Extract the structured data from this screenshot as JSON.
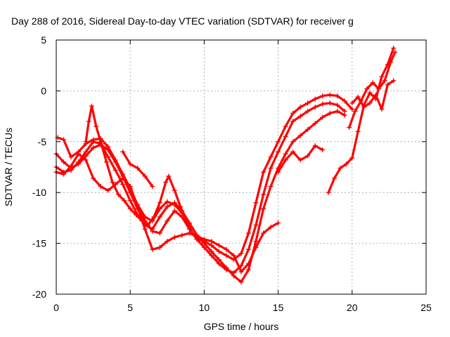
{
  "chart_data": {
    "type": "scatter",
    "title": "Day 288 of 2016, Sidereal Day-to-day VTEC variation (SDTVAR) for receiver g",
    "xlabel": "GPS time / hours",
    "ylabel": "SDTVAR / TECUs",
    "xlim": [
      0,
      25
    ],
    "ylim": [
      -20,
      5
    ],
    "xticks": [
      "0",
      "5",
      "10",
      "15",
      "20",
      "25"
    ],
    "yticks": [
      "5",
      "0",
      "-5",
      "-10",
      "-15",
      "-20"
    ],
    "grid": true,
    "color": "#ff0000",
    "marker": "+",
    "series": [
      {
        "x": [
          0.1,
          0.5,
          1.0,
          1.5,
          2.0,
          2.5,
          3.0,
          3.5,
          4.0,
          4.5,
          5.0,
          5.5,
          6.0,
          6.5,
          7.0,
          7.5,
          8.0,
          8.5,
          9.0,
          9.5,
          10.0,
          10.5,
          11.0,
          11.5,
          12.0,
          12.5,
          13.0,
          13.5,
          14.0,
          14.5,
          15.0,
          15.5,
          16.0,
          16.5,
          17.0,
          17.5,
          18.0,
          18.5,
          19.0,
          19.5,
          20.0
        ],
        "y": [
          -4.6,
          -4.8,
          -6.5,
          -6.0,
          -5.2,
          -4.8,
          -4.7,
          -5.5,
          -6.8,
          -8.2,
          -9.6,
          -11.2,
          -12.4,
          -12.8,
          -11.6,
          -10.9,
          -11.2,
          -12.0,
          -13.0,
          -14.2,
          -14.8,
          -15.2,
          -15.8,
          -16.2,
          -16.6,
          -16.0,
          -14.0,
          -11.0,
          -8.0,
          -6.5,
          -5.0,
          -3.5,
          -2.2,
          -1.6,
          -1.2,
          -0.8,
          -0.5,
          -0.4,
          -0.5,
          -1.0,
          -1.8
        ]
      },
      {
        "x": [
          0.0,
          0.5,
          1.0,
          1.5,
          2.0,
          2.5,
          3.0,
          3.5,
          4.0,
          4.5,
          5.0,
          5.5,
          6.0,
          6.5,
          7.0,
          7.5,
          8.0,
          8.5,
          9.0,
          9.5,
          10.0,
          10.5,
          11.0,
          11.5,
          12.0,
          12.5,
          13.0,
          13.5,
          14.0,
          14.5,
          15.0,
          15.5,
          16.0,
          16.5,
          17.0,
          17.5,
          18.0,
          18.5,
          19.0,
          19.5
        ],
        "y": [
          -6.2,
          -7.0,
          -7.6,
          -7.2,
          -6.4,
          -5.6,
          -5.3,
          -5.8,
          -7.0,
          -8.4,
          -10.0,
          -11.6,
          -12.8,
          -13.8,
          -14.0,
          -12.8,
          -11.8,
          -12.4,
          -13.6,
          -14.6,
          -15.4,
          -16.2,
          -17.0,
          -17.6,
          -17.9,
          -17.2,
          -15.6,
          -13.2,
          -10.2,
          -7.6,
          -6.0,
          -4.5,
          -3.0,
          -2.5,
          -2.0,
          -1.6,
          -1.3,
          -1.2,
          -1.4,
          -2.0
        ]
      },
      {
        "x": [
          0.0,
          0.5,
          1.0,
          1.5,
          2.0,
          2.5,
          3.0,
          3.5,
          4.0,
          4.5,
          5.0,
          5.5,
          6.0,
          6.5,
          7.0,
          7.5,
          8.0,
          8.5,
          9.0,
          9.5,
          10.0,
          10.5,
          11.0,
          11.5,
          12.0,
          12.5,
          13.0,
          13.5,
          14.0,
          14.5,
          15.0,
          15.5,
          16.0,
          16.5,
          17.0,
          17.5,
          18.0,
          18.5,
          19.0,
          19.5
        ],
        "y": [
          -7.5,
          -8.0,
          -7.8,
          -7.0,
          -6.0,
          -5.0,
          -5.2,
          -6.5,
          -7.8,
          -9.2,
          -10.8,
          -12.2,
          -13.2,
          -13.6,
          -12.4,
          -11.4,
          -11.0,
          -11.8,
          -13.0,
          -14.2,
          -15.0,
          -15.8,
          -16.6,
          -17.4,
          -18.2,
          -18.8,
          -17.6,
          -14.8,
          -11.6,
          -9.4,
          -7.6,
          -6.2,
          -5.0,
          -4.4,
          -3.8,
          -3.2,
          -2.6,
          -2.2,
          -2.0,
          -2.4
        ]
      },
      {
        "x": [
          0.0,
          0.5,
          1.0,
          1.5,
          2.0,
          2.5,
          3.0,
          3.5,
          4.0,
          4.5,
          5.0,
          5.5,
          6.0,
          6.5,
          7.0,
          7.5,
          8.0,
          8.5,
          9.0,
          9.5,
          10.0,
          10.5,
          11.0,
          11.5,
          12.0,
          12.5,
          13.0,
          13.5,
          14.0,
          14.5,
          15.0
        ],
        "y": [
          -8.0,
          -8.2,
          -7.4,
          -6.2,
          -6.8,
          -8.6,
          -9.4,
          -9.8,
          -9.2,
          -8.6,
          -9.4,
          -11.4,
          -13.6,
          -15.6,
          -15.4,
          -14.8,
          -14.4,
          -14.2,
          -14.0,
          -14.3,
          -14.6,
          -14.8,
          -15.2,
          -15.6,
          -16.2,
          -17.8,
          -17.0,
          -15.4,
          -14.0,
          -13.4,
          -13.0
        ]
      },
      {
        "x": [
          2.0,
          2.2,
          2.4,
          2.7,
          3.0,
          3.4,
          3.8,
          4.2,
          4.6,
          5.0,
          5.4,
          5.8,
          6.2,
          6.6,
          7.0,
          7.4,
          7.6,
          8.0,
          8.4,
          8.8,
          9.2,
          9.6,
          10.0
        ],
        "y": [
          -5.0,
          -3.0,
          -1.5,
          -3.5,
          -5.0,
          -7.0,
          -9.0,
          -10.2,
          -10.8,
          -11.6,
          -12.2,
          -12.8,
          -13.2,
          -12.4,
          -11.0,
          -9.0,
          -8.4,
          -9.8,
          -11.4,
          -12.8,
          -14.0,
          -14.6,
          -14.8
        ]
      },
      {
        "x": [
          4.5,
          5.0,
          5.5,
          6.0,
          6.5
        ],
        "y": [
          -6.0,
          -7.2,
          -7.6,
          -8.4,
          -9.4
        ]
      },
      {
        "x": [
          18.4,
          18.8,
          19.2,
          19.6,
          20.0,
          20.4,
          20.8,
          21.2,
          21.6,
          22.0,
          22.4,
          22.8
        ],
        "y": [
          -10.0,
          -8.6,
          -7.6,
          -7.2,
          -6.6,
          -4.0,
          -1.4,
          -0.2,
          -0.8,
          1.4,
          2.6,
          4.2
        ]
      },
      {
        "x": [
          19.8,
          20.2,
          20.6,
          21.0,
          21.4,
          21.8,
          22.2,
          22.6,
          22.9
        ],
        "y": [
          -3.6,
          -2.0,
          -1.0,
          0.2,
          0.8,
          0.2,
          1.0,
          2.8,
          3.8
        ]
      },
      {
        "x": [
          20.0,
          20.4,
          20.8,
          21.2,
          21.6,
          22.0,
          22.4,
          22.8
        ],
        "y": [
          -1.2,
          -0.6,
          -1.6,
          -1.2,
          -0.4,
          -1.8,
          0.6,
          1.0
        ]
      },
      {
        "x": [
          15.0,
          15.5,
          16.0,
          16.5,
          17.0,
          17.5,
          18.0
        ],
        "y": [
          -8.0,
          -6.8,
          -6.0,
          -6.8,
          -6.4,
          -5.4,
          -5.8
        ]
      }
    ]
  }
}
